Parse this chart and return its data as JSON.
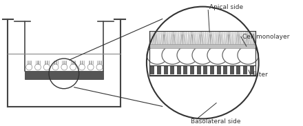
{
  "bg_color": "#ffffff",
  "line_color": "#444444",
  "dark_color": "#333333",
  "gray_color": "#888888",
  "light_gray": "#bbbbbb",
  "cell_gray": "#cccccc",
  "filter_gray": "#666666",
  "white": "#ffffff",
  "labels": {
    "apical": "Apical side",
    "cell_monolayer": "Cell monolayer",
    "filter": "Filter",
    "basolateral": "Basolateral side"
  },
  "font_size": 6.5,
  "figw": 4.4,
  "figh": 1.83
}
